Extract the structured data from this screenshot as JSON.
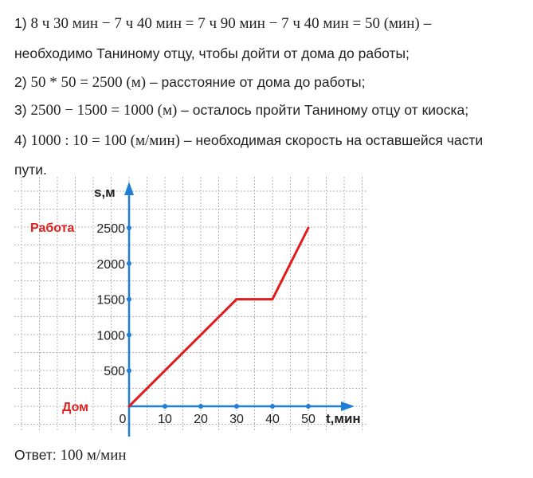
{
  "solution": {
    "step1": {
      "prefix": "1) ",
      "expr": "8 ч 30 мин − 7 ч 40 мин = 7 ч 90 мин − 7 ч 40 мин = 50 (мин)",
      "tail": " –",
      "cont": "необходимо Таниному отцу, чтобы дойти от дома до работы;"
    },
    "step2": {
      "prefix": "2) ",
      "expr": "50 * 50 = 2500 (м)",
      "tail": " – расстояние от дома до работы;"
    },
    "step3": {
      "prefix": "3) ",
      "expr": "2500 − 1500 = 1000 (м)",
      "tail": " – осталось пройти Таниному отцу от киоска;"
    },
    "step4": {
      "prefix": "4) ",
      "expr": "1000 : 10 = 100 (м/мин)",
      "tail": " – необходимая скорость на оставшейся части",
      "cont": "пути."
    }
  },
  "answer": {
    "label": "Ответ: ",
    "value": "100 м/мин"
  },
  "chart_data": {
    "type": "line",
    "x": [
      0,
      30,
      40,
      50
    ],
    "y": [
      0,
      1500,
      1500,
      2500
    ],
    "xlabel": "t,мин",
    "ylabel": "s,м",
    "x_ticks": [
      "0",
      "10",
      "20",
      "30",
      "40",
      "50"
    ],
    "y_ticks": [
      "500",
      "1000",
      "1500",
      "2000",
      "2500"
    ],
    "xlim": [
      -30,
      65
    ],
    "ylim": [
      -100,
      3000
    ],
    "grid": true,
    "annotations": {
      "top": "Работа",
      "bottom": "Дом"
    },
    "colors": {
      "line": "#e41b1b",
      "axis": "#1f7fd6",
      "grid": "#b5b5b5"
    }
  }
}
